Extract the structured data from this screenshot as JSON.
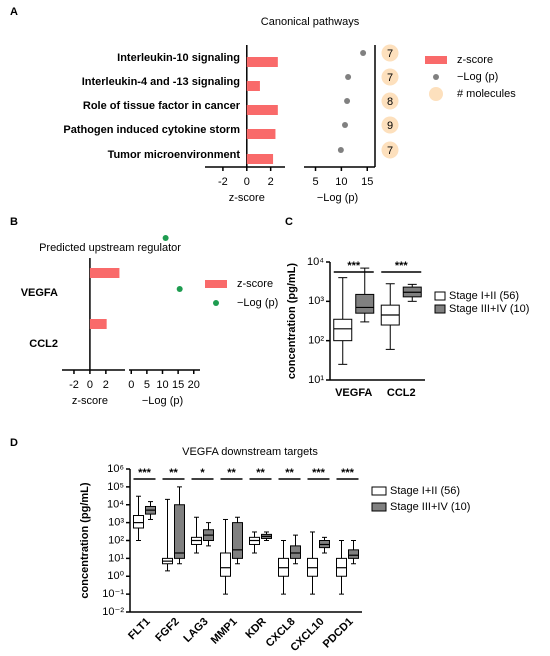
{
  "chart_data": [
    {
      "type": "bar",
      "panel": "A",
      "title": "Canonical pathways",
      "categories": [
        "Interleukin-10 signaling",
        "Interleukin-4 and -13 signaling",
        "Role of tissue factor in cancer",
        "Pathogen induced cytokine storm",
        "Tumor microenvironment"
      ],
      "series": [
        {
          "name": "z-score",
          "color": "#f96a6a",
          "values": [
            2.6,
            1.1,
            2.6,
            2.4,
            2.2
          ]
        },
        {
          "name": "−Log (p)",
          "color": "#808080",
          "axis": "x2",
          "values": [
            14.2,
            11.3,
            11.1,
            10.7,
            9.9
          ]
        },
        {
          "name": "# molecules",
          "color": "#fde0bd",
          "values": [
            7,
            7,
            8,
            9,
            7
          ]
        }
      ],
      "xlim": [
        -3.5,
        3.2
      ],
      "xticks": [
        -2,
        0,
        2
      ],
      "xlabel": "z-score",
      "x2lim": [
        2,
        16.5
      ],
      "x2ticks": [
        5,
        10,
        15
      ],
      "x2label": "−Log (p)"
    },
    {
      "type": "bar",
      "panel": "B",
      "title": "Predicted upstream regulator",
      "categories": [
        "VEGFA",
        "CCL2"
      ],
      "series": [
        {
          "name": "z-score",
          "color": "#f96a6a",
          "values": [
            3.7,
            2.1
          ]
        },
        {
          "name": "−Log (p)",
          "color": "#1e9c50",
          "axis": "x2",
          "values": [
            11,
            15.5
          ]
        }
      ],
      "xlim": [
        -3.5,
        4.4
      ],
      "xticks": [
        -2,
        0,
        2
      ],
      "xlabel": "z-score",
      "x2lim": [
        -2,
        22
      ],
      "x2ticks": [
        0,
        5,
        10,
        15,
        20
      ],
      "x2label": "−Log (p)"
    },
    {
      "type": "box",
      "panel": "C",
      "categories": [
        "VEGFA",
        "CCL2"
      ],
      "log": true,
      "ylabel": "concentration (pg/mL)",
      "ylim": [
        10,
        10000
      ],
      "yticks": [
        {
          "value": 10,
          "label": "10¹"
        },
        {
          "value": 100,
          "label": "10²"
        },
        {
          "value": 1000,
          "label": "10³"
        },
        {
          "value": 10000,
          "label": "10⁴"
        }
      ],
      "annotations": [
        "***",
        "***"
      ],
      "series": [
        {
          "name": "Stage I+II (56)",
          "color": "#ffffff",
          "values": [
            {
              "min": 25,
              "q1": 100,
              "median": 200,
              "q3": 350,
              "max": 4000
            },
            {
              "min": 60,
              "q1": 250,
              "median": 450,
              "q3": 800,
              "max": 2800
            }
          ]
        },
        {
          "name": "Stage III+IV (10)",
          "color": "#808080",
          "values": [
            {
              "min": 300,
              "q1": 500,
              "median": 700,
              "q3": 1500,
              "max": 7000
            },
            {
              "min": 1000,
              "q1": 1300,
              "median": 1700,
              "q3": 2300,
              "max": 2700
            }
          ]
        }
      ]
    },
    {
      "type": "box",
      "panel": "D",
      "title": "VEGFA downstream targets",
      "categories": [
        "FLT1",
        "FGF2",
        "LAG3",
        "MMP1",
        "KDR",
        "CXCL8",
        "CXCL10",
        "PDCD1"
      ],
      "log": true,
      "ylabel": "concentration (pg/mL)",
      "ylim": [
        0.01,
        1000000
      ],
      "yticks": [
        {
          "value": 0.01,
          "label": "10⁻²"
        },
        {
          "value": 0.1,
          "label": "10⁻¹"
        },
        {
          "value": 1,
          "label": "10⁰"
        },
        {
          "value": 10,
          "label": "10¹"
        },
        {
          "value": 100,
          "label": "10²"
        },
        {
          "value": 1000,
          "label": "10³"
        },
        {
          "value": 10000,
          "label": "10⁴"
        },
        {
          "value": 100000,
          "label": "10⁵"
        },
        {
          "value": 1000000,
          "label": "10⁶"
        }
      ],
      "annotations": [
        "***",
        "**",
        "*",
        "**",
        "**",
        "**",
        "***",
        "***"
      ],
      "series": [
        {
          "name": "Stage I+II (56)",
          "color": "#ffffff",
          "values": [
            {
              "min": 100,
              "q1": 500,
              "median": 1000,
              "q3": 2500,
              "max": 30000
            },
            {
              "min": 2,
              "q1": 5,
              "median": 7,
              "q3": 10,
              "max": 20000
            },
            {
              "min": 20,
              "q1": 60,
              "median": 100,
              "q3": 150,
              "max": 2000
            },
            {
              "min": 0.1,
              "q1": 1,
              "median": 3,
              "q3": 20,
              "max": 1500
            },
            {
              "min": 20,
              "q1": 60,
              "median": 100,
              "q3": 150,
              "max": 300
            },
            {
              "min": 0.1,
              "q1": 1,
              "median": 3,
              "q3": 10,
              "max": 100
            },
            {
              "min": 0.1,
              "q1": 1,
              "median": 3,
              "q3": 10,
              "max": 300
            },
            {
              "min": 0.1,
              "q1": 1,
              "median": 3,
              "q3": 10,
              "max": 100
            }
          ]
        },
        {
          "name": "Stage III+IV (10)",
          "color": "#808080",
          "values": [
            {
              "min": 1500,
              "q1": 3000,
              "median": 5000,
              "q3": 8000,
              "max": 15000
            },
            {
              "min": 5,
              "q1": 10,
              "median": 20,
              "q3": 10000,
              "max": 100000
            },
            {
              "min": 50,
              "q1": 100,
              "median": 200,
              "q3": 400,
              "max": 1000
            },
            {
              "min": 5,
              "q1": 10,
              "median": 30,
              "q3": 1000,
              "max": 2000
            },
            {
              "min": 100,
              "q1": 130,
              "median": 170,
              "q3": 220,
              "max": 300
            },
            {
              "min": 5,
              "q1": 10,
              "median": 20,
              "q3": 50,
              "max": 200
            },
            {
              "min": 20,
              "q1": 40,
              "median": 60,
              "q3": 100,
              "max": 150
            },
            {
              "min": 5,
              "q1": 10,
              "median": 15,
              "q3": 30,
              "max": 100
            }
          ]
        }
      ]
    }
  ]
}
